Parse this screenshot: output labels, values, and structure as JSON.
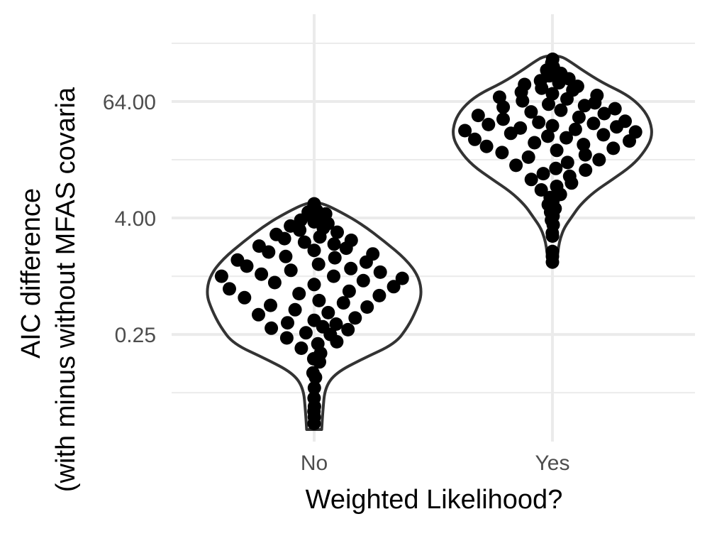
{
  "chart_data": {
    "type": "violin",
    "title": "",
    "xlabel": "Weighted Likelihood?",
    "ylabel_lines": [
      "AIC difference",
      "(with minus without MFAS covaria"
    ],
    "y_scale": "log2",
    "y_ticks": [
      0.25,
      4,
      64
    ],
    "y_tick_labels": [
      "0.25",
      "4.00",
      "64.00"
    ],
    "ylim": [
      0.0195,
      512
    ],
    "categories": [
      "No",
      "Yes"
    ],
    "grid": true,
    "legend": "none",
    "colors": {
      "points": "#000000",
      "violin_outline": "#333333",
      "grid": "#ebebeb",
      "background": "#ffffff"
    },
    "violins": [
      {
        "category": "No",
        "range": [
          0.026,
          5.8
        ],
        "profile": [
          [
            0.026,
            0.07
          ],
          [
            0.04,
            0.08
          ],
          [
            0.07,
            0.1
          ],
          [
            0.1,
            0.2
          ],
          [
            0.14,
            0.45
          ],
          [
            0.2,
            0.75
          ],
          [
            0.3,
            0.87
          ],
          [
            0.45,
            0.95
          ],
          [
            0.65,
            1.0
          ],
          [
            1.0,
            0.97
          ],
          [
            1.5,
            0.85
          ],
          [
            2.3,
            0.65
          ],
          [
            3.4,
            0.45
          ],
          [
            4.6,
            0.25
          ],
          [
            5.8,
            0.06
          ]
        ],
        "points": [
          [
            0.03,
            -0.05
          ],
          [
            0.035,
            0.1
          ],
          [
            0.04,
            -0.12
          ],
          [
            0.045,
            0.15
          ],
          [
            0.055,
            -0.02
          ],
          [
            0.07,
            0.05
          ],
          [
            0.09,
            0.12
          ],
          [
            0.1,
            -0.08
          ],
          [
            0.13,
            0.15
          ],
          [
            0.14,
            -0.01
          ],
          [
            0.16,
            0.12
          ],
          [
            0.18,
            -0.2
          ],
          [
            0.2,
            0.05
          ],
          [
            0.21,
            0.3
          ],
          [
            0.23,
            -0.35
          ],
          [
            0.25,
            0.2
          ],
          [
            0.26,
            -0.1
          ],
          [
            0.28,
            0.4
          ],
          [
            0.29,
            -0.5
          ],
          [
            0.3,
            0.1
          ],
          [
            0.32,
            0.25
          ],
          [
            0.33,
            -0.3
          ],
          [
            0.35,
            0.0
          ],
          [
            0.37,
            0.45
          ],
          [
            0.4,
            -0.6
          ],
          [
            0.42,
            0.15
          ],
          [
            0.45,
            -0.2
          ],
          [
            0.48,
            0.55
          ],
          [
            0.5,
            -0.45
          ],
          [
            0.53,
            0.3
          ],
          [
            0.56,
            0.05
          ],
          [
            0.6,
            -0.7
          ],
          [
            0.63,
            0.65
          ],
          [
            0.66,
            -0.15
          ],
          [
            0.7,
            0.35
          ],
          [
            0.74,
            -0.85
          ],
          [
            0.78,
            0.8
          ],
          [
            0.82,
            0.0
          ],
          [
            0.86,
            -0.4
          ],
          [
            0.9,
            0.5
          ],
          [
            0.95,
            0.9
          ],
          [
            1.0,
            -0.95
          ],
          [
            1.0,
            0.2
          ],
          [
            1.05,
            -0.55
          ],
          [
            1.1,
            0.7
          ],
          [
            1.15,
            -0.25
          ],
          [
            1.2,
            0.4
          ],
          [
            1.27,
            -0.75
          ],
          [
            1.33,
            0.05
          ],
          [
            1.4,
            0.6
          ],
          [
            1.47,
            -0.9
          ],
          [
            1.55,
            0.25
          ],
          [
            1.6,
            -0.35
          ],
          [
            1.7,
            0.75
          ],
          [
            1.78,
            -0.6
          ],
          [
            1.85,
            0.0
          ],
          [
            1.95,
            0.45
          ],
          [
            2.05,
            -0.8
          ],
          [
            2.15,
            0.3
          ],
          [
            2.25,
            -0.15
          ],
          [
            2.35,
            0.6
          ],
          [
            2.45,
            -0.5
          ],
          [
            2.55,
            0.1
          ],
          [
            2.7,
            -0.7
          ],
          [
            2.85,
            0.45
          ],
          [
            3.0,
            -0.3
          ],
          [
            3.15,
            0.2
          ],
          [
            3.3,
            -0.55
          ],
          [
            3.5,
            0.35
          ],
          [
            3.65,
            0.0
          ],
          [
            3.8,
            -0.4
          ],
          [
            4.0,
            0.25
          ],
          [
            4.2,
            -0.1
          ],
          [
            4.4,
            0.5
          ],
          [
            4.6,
            -0.3
          ],
          [
            4.8,
            0.15
          ],
          [
            5.2,
            -0.05
          ],
          [
            5.6,
            0.0
          ]
        ]
      },
      {
        "category": "Yes",
        "range": [
          1.3,
          190
        ],
        "profile": [
          [
            1.3,
            0.04
          ],
          [
            1.6,
            0.05
          ],
          [
            2.0,
            0.06
          ],
          [
            2.5,
            0.08
          ],
          [
            3.2,
            0.12
          ],
          [
            4.2,
            0.2
          ],
          [
            5.5,
            0.28
          ],
          [
            7.5,
            0.42
          ],
          [
            10,
            0.6
          ],
          [
            14,
            0.8
          ],
          [
            20,
            0.93
          ],
          [
            28,
            1.0
          ],
          [
            40,
            0.98
          ],
          [
            55,
            0.9
          ],
          [
            75,
            0.75
          ],
          [
            100,
            0.5
          ],
          [
            135,
            0.3
          ],
          [
            165,
            0.18
          ],
          [
            190,
            0.08
          ]
        ],
        "points": [
          [
            1.4,
            0.02
          ],
          [
            1.6,
            -0.05
          ],
          [
            1.8,
            -0.08
          ],
          [
            2.6,
            0.05
          ],
          [
            2.8,
            -0.04
          ],
          [
            3.4,
            0.12
          ],
          [
            3.8,
            -0.1
          ],
          [
            4.2,
            0.05
          ],
          [
            4.6,
            -0.12
          ],
          [
            5.0,
            0.15
          ],
          [
            5.5,
            -0.2
          ],
          [
            6.0,
            0.02
          ],
          [
            6.5,
            -0.08
          ],
          [
            7.0,
            0.25
          ],
          [
            7.8,
            -0.3
          ],
          [
            8.5,
            0.1
          ],
          [
            9.2,
            0.4
          ],
          [
            10,
            -0.4
          ],
          [
            10.8,
            0.3
          ],
          [
            11.5,
            -0.15
          ],
          [
            12.5,
            0.5
          ],
          [
            13,
            0.05
          ],
          [
            14,
            -0.5
          ],
          [
            15,
            0.2
          ],
          [
            16,
            0.6
          ],
          [
            17,
            -0.3
          ],
          [
            18,
            0.4
          ],
          [
            19,
            -0.6
          ],
          [
            20,
            0.05
          ],
          [
            21,
            0.7
          ],
          [
            22,
            -0.75
          ],
          [
            23,
            0.35
          ],
          [
            24,
            -0.2
          ],
          [
            25,
            0.85
          ],
          [
            26,
            -0.85
          ],
          [
            27,
            0.15
          ],
          [
            28,
            -0.05
          ],
          [
            29,
            0.55
          ],
          [
            30,
            -0.45
          ],
          [
            31,
            0.9
          ],
          [
            32,
            -0.95
          ],
          [
            33,
            0.25
          ],
          [
            34,
            -0.35
          ],
          [
            35,
            0.7
          ],
          [
            36,
            0.0
          ],
          [
            37,
            -0.7
          ],
          [
            38,
            0.45
          ],
          [
            39,
            -0.15
          ],
          [
            40,
            0.8
          ],
          [
            42,
            -0.55
          ],
          [
            44,
            0.3
          ],
          [
            46,
            -0.85
          ],
          [
            48,
            0.6
          ],
          [
            50,
            -0.25
          ],
          [
            52,
            0.1
          ],
          [
            54,
            0.75
          ],
          [
            56,
            -0.6
          ],
          [
            58,
            0.4
          ],
          [
            60,
            -0.05
          ],
          [
            62,
            0.55
          ],
          [
            65,
            -0.4
          ],
          [
            68,
            0.2
          ],
          [
            71,
            -0.75
          ],
          [
            74,
            0.65
          ],
          [
            77,
            0.0
          ],
          [
            80,
            -0.5
          ],
          [
            84,
            0.35
          ],
          [
            88,
            -0.2
          ],
          [
            92,
            0.5
          ],
          [
            96,
            -0.6
          ],
          [
            100,
            0.15
          ],
          [
            105,
            -0.3
          ],
          [
            110,
            0.45
          ],
          [
            118,
            -0.1
          ],
          [
            125,
            0.3
          ],
          [
            135,
            -0.25
          ],
          [
            145,
            0.05
          ],
          [
            160,
            -0.05
          ],
          [
            175,
            0.03
          ]
        ]
      }
    ]
  }
}
